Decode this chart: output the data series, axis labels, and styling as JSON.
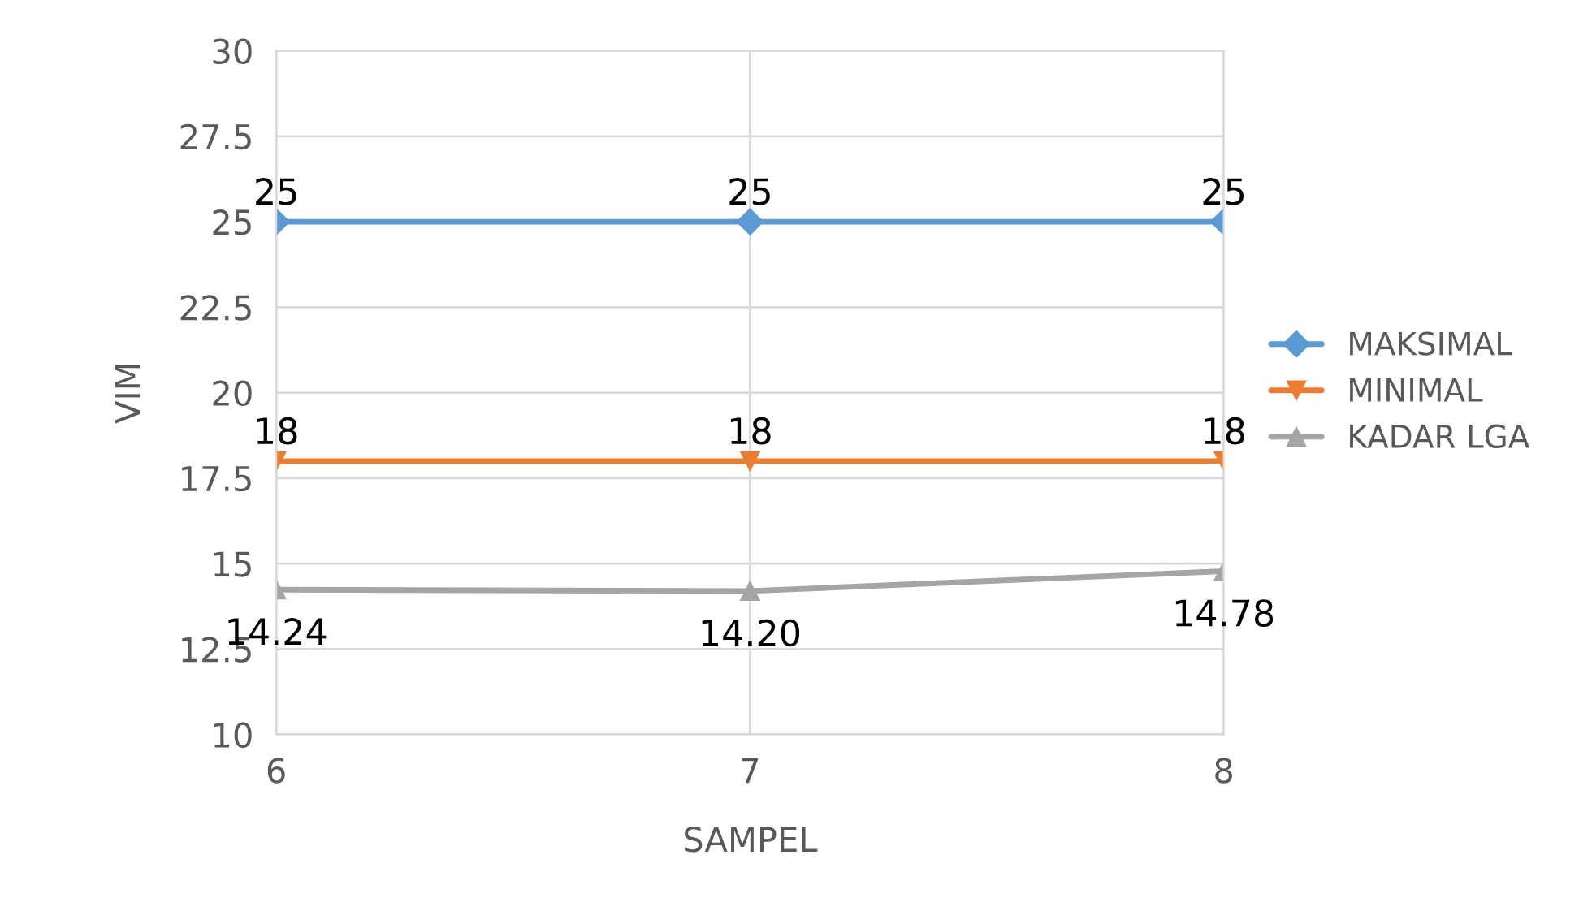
{
  "chart_data": {
    "type": "line",
    "xlabel": "SAMPEL",
    "ylabel": "VIM",
    "x": [
      6,
      7,
      8
    ],
    "xlim": [
      6,
      8
    ],
    "xticks": [
      6,
      7,
      8
    ],
    "ylim": [
      10,
      30
    ],
    "yticks": [
      10,
      12.5,
      15,
      17.5,
      20,
      22.5,
      25,
      27.5,
      30
    ],
    "grid": true,
    "legend": "right",
    "line_style": "solid",
    "series": [
      {
        "name": "MAKSIMAL",
        "color": "#5b9bd5",
        "marker": "diamond",
        "values": [
          25,
          25,
          25
        ],
        "value_labels": [
          "25",
          "25",
          "25"
        ]
      },
      {
        "name": "MINIMAL",
        "color": "#ed7d31",
        "marker": "triangle_down",
        "values": [
          18,
          18,
          18
        ],
        "value_labels": [
          "18",
          "18",
          "18"
        ]
      },
      {
        "name": "KADAR LGA",
        "color": "#a5a5a5",
        "marker": "triangle",
        "values": [
          14.24,
          14.2,
          14.78
        ],
        "value_labels": [
          "14.24",
          "14.20",
          "14.78"
        ]
      }
    ]
  }
}
